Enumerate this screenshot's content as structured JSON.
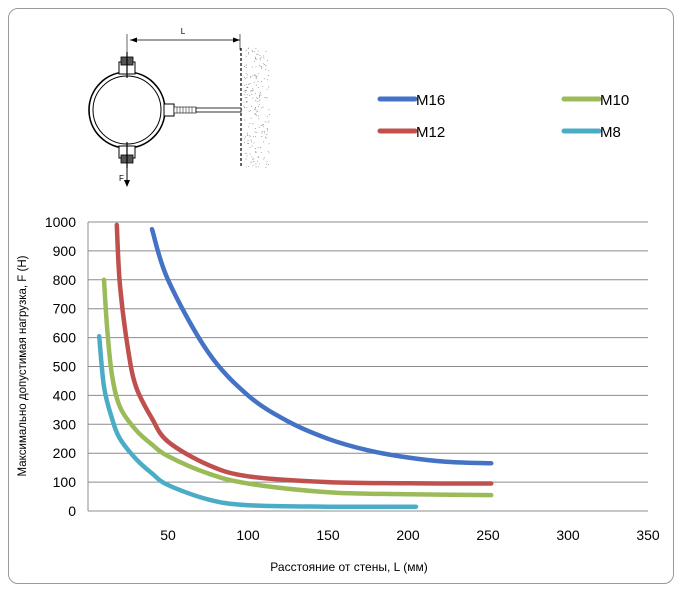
{
  "diagram": {
    "length_label": "L",
    "force_label": "F"
  },
  "chart_data": {
    "type": "line",
    "xlabel": "Расстояние от стены, L (мм)",
    "ylabel": "Максимально допустимая нагрузка, F (Н)",
    "xlim": [
      0,
      350
    ],
    "ylim": [
      0,
      1000
    ],
    "x_ticks": [
      50,
      100,
      150,
      200,
      250,
      300,
      350
    ],
    "y_ticks": [
      0,
      100,
      200,
      300,
      400,
      500,
      600,
      700,
      800,
      900,
      1000
    ],
    "grid": "horizontal",
    "legend_position": "top-right",
    "series": [
      {
        "name": "M16",
        "color": "#4472C4",
        "x": [
          40,
          50,
          75,
          100,
          125,
          150,
          175,
          200,
          225,
          252
        ],
        "y": [
          975,
          800,
          550,
          400,
          310,
          250,
          210,
          185,
          170,
          165
        ]
      },
      {
        "name": "M12",
        "color": "#C0504D",
        "x": [
          18,
          20,
          25,
          30,
          40,
          50,
          75,
          100,
          150,
          200,
          252
        ],
        "y": [
          990,
          780,
          560,
          430,
          320,
          240,
          160,
          120,
          100,
          96,
          95
        ]
      },
      {
        "name": "M10",
        "color": "#9BBB59",
        "x": [
          10,
          12,
          15,
          20,
          30,
          40,
          50,
          75,
          100,
          150,
          200,
          252
        ],
        "y": [
          800,
          630,
          470,
          360,
          280,
          230,
          190,
          130,
          95,
          65,
          58,
          55
        ]
      },
      {
        "name": "M8",
        "color": "#4BACC6",
        "x": [
          7,
          10,
          15,
          20,
          30,
          40,
          50,
          75,
          100,
          150,
          205
        ],
        "y": [
          605,
          430,
          320,
          250,
          180,
          130,
          90,
          40,
          20,
          15,
          15
        ]
      }
    ]
  }
}
